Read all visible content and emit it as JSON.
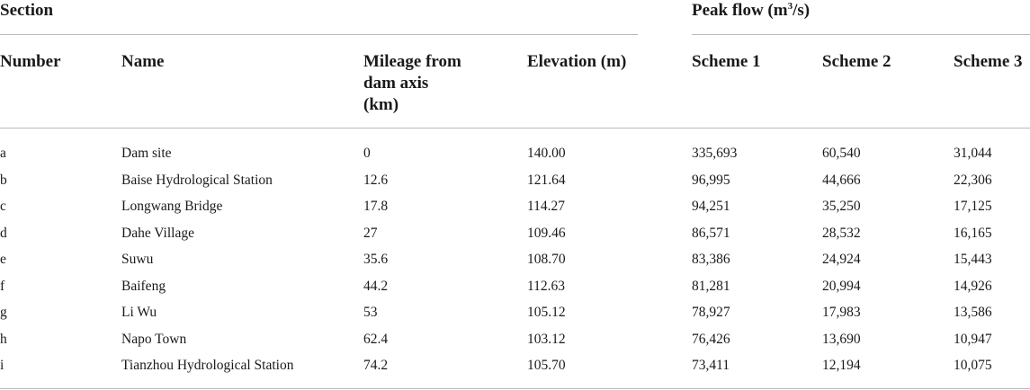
{
  "headers": {
    "section": "Section",
    "peak_flow": "Peak flow (m",
    "peak_flow_sup": "3",
    "peak_flow_tail": "/s)",
    "number": "Number",
    "name": "Name",
    "mileage": [
      "Mileage from",
      "dam axis",
      "(km)"
    ],
    "elevation": "Elevation (m)",
    "scheme1": "Scheme 1",
    "scheme2": "Scheme 2",
    "scheme3": "Scheme 3"
  },
  "rows": [
    {
      "number": "a",
      "name": "Dam site",
      "mileage": "0",
      "elevation": "140.00",
      "s1": "335,693",
      "s2": "60,540",
      "s3": "31,044"
    },
    {
      "number": "b",
      "name": "Baise Hydrological Station",
      "mileage": "12.6",
      "elevation": "121.64",
      "s1": "96,995",
      "s2": "44,666",
      "s3": "22,306"
    },
    {
      "number": "c",
      "name": "Longwang Bridge",
      "mileage": "17.8",
      "elevation": "114.27",
      "s1": "94,251",
      "s2": "35,250",
      "s3": "17,125"
    },
    {
      "number": "d",
      "name": "Dahe Village",
      "mileage": "27",
      "elevation": "109.46",
      "s1": "86,571",
      "s2": "28,532",
      "s3": "16,165"
    },
    {
      "number": "e",
      "name": "Suwu",
      "mileage": "35.6",
      "elevation": "108.70",
      "s1": "83,386",
      "s2": "24,924",
      "s3": "15,443"
    },
    {
      "number": "f",
      "name": "Baifeng",
      "mileage": "44.2",
      "elevation": "112.63",
      "s1": "81,281",
      "s2": "20,994",
      "s3": "14,926"
    },
    {
      "number": "g",
      "name": "Li Wu",
      "mileage": "53",
      "elevation": "105.12",
      "s1": "78,927",
      "s2": "17,983",
      "s3": "13,586"
    },
    {
      "number": "h",
      "name": "Napo Town",
      "mileage": "62.4",
      "elevation": "103.12",
      "s1": "76,426",
      "s2": "13,690",
      "s3": "10,947"
    },
    {
      "number": "i",
      "name": "Tianzhou Hydrological Station",
      "mileage": "74.2",
      "elevation": "105.70",
      "s1": "73,411",
      "s2": "12,194",
      "s3": "10,075"
    }
  ]
}
